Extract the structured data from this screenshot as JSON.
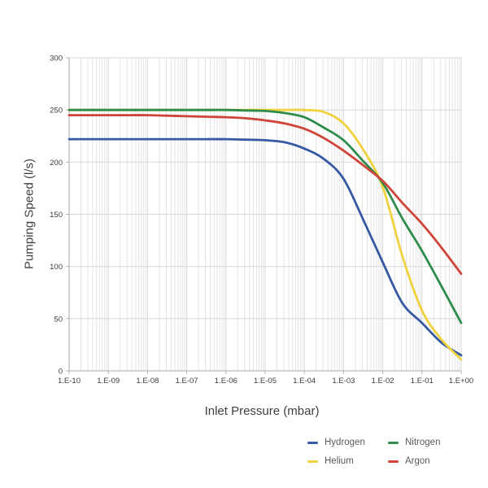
{
  "chart_data": {
    "type": "line",
    "title": "",
    "xlabel": "Inlet Pressure (mbar)",
    "ylabel": "Pumping Speed (l/s)",
    "x_scale": "log10",
    "x_range_log10": [
      -10,
      0
    ],
    "ylim": [
      0,
      300
    ],
    "y_ticks": [
      0,
      50,
      100,
      150,
      200,
      250,
      300
    ],
    "x_tick_labels": [
      "1.E-10",
      "1.E-09",
      "1.E-08",
      "1.E-07",
      "1.E-06",
      "1.E-05",
      "1.E-04",
      "1.E-03",
      "1.E-02",
      "1.E-01",
      "1.E+00"
    ],
    "grid": {
      "horizontal": true,
      "vertical_major": true,
      "vertical_log_minor": true
    },
    "legend": {
      "position": "bottom-right",
      "layout": "2x2",
      "rows": [
        [
          "Hydrogen",
          "Nitrogen"
        ],
        [
          "Helium",
          "Argon"
        ]
      ]
    },
    "x_log10": [
      -10,
      -9.5,
      -9,
      -8.5,
      -8,
      -7.5,
      -7,
      -6.5,
      -6,
      -5.5,
      -5,
      -4.5,
      -4,
      -3.5,
      -3,
      -2.5,
      -2,
      -1.5,
      -1,
      -0.5,
      0
    ],
    "series": [
      {
        "name": "Hydrogen",
        "color": "#3659a4",
        "y": [
          222,
          222,
          222,
          222,
          222,
          222,
          222,
          222,
          222,
          221.5,
          221,
          219,
          213,
          203,
          184,
          145,
          104,
          65,
          46,
          27,
          15
        ]
      },
      {
        "name": "Helium",
        "color": "#efd23d",
        "y": [
          250,
          250,
          250,
          250,
          250,
          250,
          250,
          250,
          250,
          250,
          250,
          250,
          250,
          248,
          237,
          212,
          176,
          110,
          58,
          30,
          11
        ]
      },
      {
        "name": "Nitrogen",
        "color": "#2d8c49",
        "y": [
          250,
          250,
          250,
          250,
          250,
          250,
          250,
          250,
          250,
          249.5,
          249,
          247,
          243,
          233,
          221,
          201,
          180,
          146,
          115,
          81,
          46
        ]
      },
      {
        "name": "Argon",
        "color": "#cf453a",
        "y": [
          245,
          245,
          245,
          245,
          245,
          244.5,
          244,
          243.5,
          243,
          242,
          240,
          237,
          232,
          223,
          211,
          197,
          182,
          161,
          141,
          118,
          93
        ]
      }
    ],
    "legend_draw_order": [
      0,
      2,
      1,
      3
    ]
  },
  "style": {
    "grid_minor_color": "#e4e4e4",
    "grid_major_color": "#d7d7d7",
    "axis_color": "#a8a8a8",
    "tick_color": "#b3b3b3",
    "tick_label_color": "#3c3c3c",
    "line_width": 2.8
  }
}
